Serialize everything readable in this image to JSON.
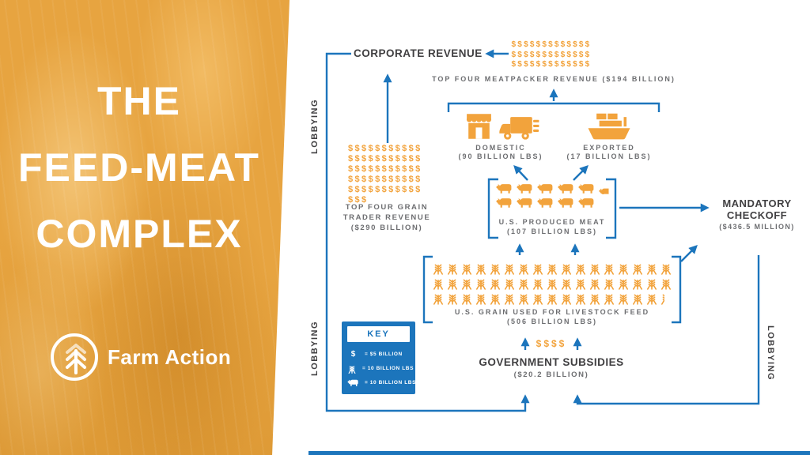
{
  "colors": {
    "orange": "#F2A33C",
    "blue": "#1C75BC",
    "dark_text": "#414042",
    "gray_text": "#6D6E71",
    "panel": "#E7A440"
  },
  "left_panel": {
    "title_lines": [
      "THE",
      "FEED-MEAT",
      "COMPLEX"
    ],
    "logo": {
      "icon": "wheat-arrow-circle-icon",
      "text": "Farm Action"
    }
  },
  "diagram": {
    "corporate_revenue": {
      "label": "CORPORATE REVENUE"
    },
    "meatpacker": {
      "label": "TOP FOUR MEATPACKER REVENUE ($194 BILLION)",
      "dollar_rows": [
        "$$$$$$$$$$$$$",
        "$$$$$$$$$$$$$",
        "$$$$$$$$$$$$$"
      ]
    },
    "domestic": {
      "icons": [
        "storefront-icon",
        "delivery-truck-icon"
      ],
      "label": "DOMESTIC",
      "sublabel": "(90 BILLION LBS)"
    },
    "exported": {
      "icons": [
        "cargo-ship-icon"
      ],
      "label": "EXPORTED",
      "sublabel": "(17 BILLION LBS)"
    },
    "grain_trader": {
      "label_line1": "TOP FOUR GRAIN",
      "label_line2": "TRADER REVENUE",
      "label_line3": "($290 BILLION)",
      "dollar_rows": [
        "$$$$$$$$$$$",
        "$$$$$$$$$$$",
        "$$$$$$$$$$$",
        "$$$$$$$$$$$",
        "$$$$$$$$$$$",
        "$$$"
      ]
    },
    "meat": {
      "label": "U.S. PRODUCED MEAT",
      "sublabel": "(107 BILLION LBS)",
      "icon": "livestock-icon",
      "icon_rows": [
        5,
        5
      ],
      "partial_icons": 1
    },
    "checkoff": {
      "label_line1": "MANDATORY",
      "label_line2": "CHECKOFF",
      "sublabel": "($436.5 MILLION)"
    },
    "grain": {
      "label": "U.S. GRAIN USED FOR LIVESTOCK FEED",
      "sublabel": "(506 BILLION LBS)",
      "icon": "wheat-icon",
      "icon_rows": [
        17,
        17,
        16
      ],
      "partial_icons": 1
    },
    "subsidies": {
      "dollars": "$$$$",
      "label": "GOVERNMENT SUBSIDIES",
      "sublabel": "($20.2 BILLION)"
    },
    "lobbying_left_top": "LOBBYING",
    "lobbying_left_bottom": "LOBBYING",
    "lobbying_right": "LOBBYING",
    "key": {
      "title": "KEY",
      "rows": [
        {
          "symbol": "$",
          "icon": "dollar-symbol",
          "meaning": "= $5 BILLION"
        },
        {
          "symbol": "",
          "icon": "wheat-icon",
          "meaning": "= 10 BILLION LBS"
        },
        {
          "symbol": "",
          "icon": "livestock-icon",
          "meaning": "= 10 BILLION LBS"
        }
      ]
    }
  }
}
